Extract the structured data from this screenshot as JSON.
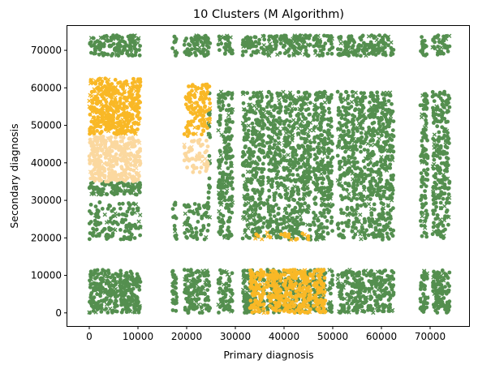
{
  "chart_data": {
    "type": "scatter",
    "title": "10 Clusters (M Algorithm)",
    "xlabel": "Primary diagnosis",
    "ylabel": "Secondary diagnosis",
    "xlim": [
      -4500,
      78000
    ],
    "ylim": [
      -3500,
      76500
    ],
    "xticks": [
      0,
      10000,
      20000,
      30000,
      40000,
      50000,
      60000,
      70000
    ],
    "yticks": [
      0,
      10000,
      20000,
      30000,
      40000,
      50000,
      60000,
      70000
    ],
    "grid": false,
    "legend": "none",
    "colors": {
      "green": "#548f4f",
      "gold": "#f9b826",
      "tan": "#fbd89f"
    },
    "x_bands": [
      [
        0,
        10500
      ],
      [
        17000,
        18000
      ],
      [
        19500,
        24800
      ],
      [
        26500,
        29500
      ],
      [
        31500,
        36000
      ],
      [
        36500,
        39500
      ],
      [
        39800,
        45500
      ],
      [
        46000,
        48500
      ],
      [
        48800,
        50000
      ],
      [
        51000,
        53500
      ],
      [
        53800,
        57000
      ],
      [
        57200,
        61000
      ],
      [
        61000,
        62500
      ],
      [
        68000,
        69500
      ],
      [
        70500,
        74000
      ]
    ],
    "clusters": [
      {
        "color": "green",
        "x": [
          0,
          11000
        ],
        "y": [
          0,
          11500
        ],
        "density": 1.0
      },
      {
        "color": "green",
        "x": [
          0,
          11000
        ],
        "y": [
          31500,
          35000
        ],
        "density": 1.0
      },
      {
        "color": "green",
        "x": [
          0,
          11000
        ],
        "y": [
          19500,
          29500
        ],
        "density": 0.5
      },
      {
        "color": "green",
        "x": [
          0,
          11000
        ],
        "y": [
          68500,
          74000
        ],
        "density": 0.9
      },
      {
        "color": "green",
        "x": [
          17000,
          74000
        ],
        "y": [
          0,
          11500
        ],
        "density": 0.7
      },
      {
        "color": "green",
        "x": [
          17000,
          74000
        ],
        "y": [
          19500,
          29500
        ],
        "density": 0.45
      },
      {
        "color": "green",
        "x": [
          24500,
          74000
        ],
        "y": [
          30000,
          59000
        ],
        "density": 0.55
      },
      {
        "color": "green",
        "x": [
          17000,
          74000
        ],
        "y": [
          68500,
          74000
        ],
        "density": 0.7
      },
      {
        "color": "gold",
        "x": [
          0,
          11000
        ],
        "y": [
          47500,
          62500
        ],
        "density": 1.0
      },
      {
        "color": "gold",
        "x": [
          19000,
          25000
        ],
        "y": [
          47000,
          61000
        ],
        "density": 0.6
      },
      {
        "color": "gold",
        "x": [
          33000,
          48500
        ],
        "y": [
          0,
          11500
        ],
        "density": 1.0
      },
      {
        "color": "gold",
        "x": [
          34000,
          46500
        ],
        "y": [
          19500,
          21500
        ],
        "density": 0.35
      },
      {
        "color": "tan",
        "x": [
          0,
          11000
        ],
        "y": [
          35000,
          47000
        ],
        "density": 1.0
      },
      {
        "color": "tan",
        "x": [
          19500,
          24500
        ],
        "y": [
          37500,
          46500
        ],
        "density": 0.5
      }
    ]
  }
}
